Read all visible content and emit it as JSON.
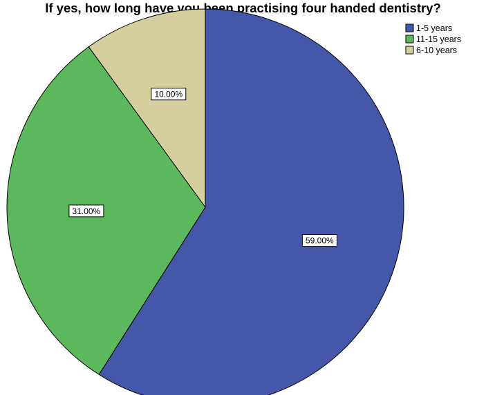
{
  "chart_data": {
    "type": "pie",
    "title": "If yes, how long have you been practising four handed dentistry?",
    "slices": [
      {
        "label": "1-5 years",
        "value": 59.0,
        "display": "59.00%",
        "color": "#4457A8"
      },
      {
        "label": "11-15 years",
        "value": 31.0,
        "display": "31.00%",
        "color": "#5CB85C"
      },
      {
        "label": "6-10 years",
        "value": 10.0,
        "display": "10.00%",
        "color": "#D5CE9D"
      }
    ],
    "legend": {
      "position": "top-right",
      "entries": [
        "1-5 years",
        "11-15 years",
        "6-10 years"
      ]
    },
    "start_angle": "top",
    "direction": "clockwise"
  }
}
